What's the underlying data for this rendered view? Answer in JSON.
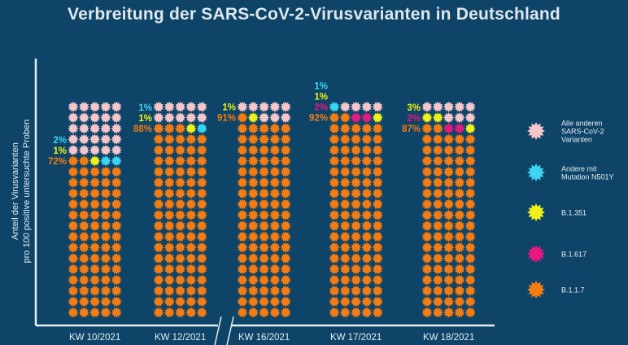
{
  "title": "Verbreitung der SARS-CoV-2-Virusvarianten in Deutschland",
  "chart_data": {
    "type": "waffle",
    "unit": "Anteil der Virusvarianten pro 100 positive untersuchte Proben",
    "ylabel_line1": "Anteil der Virusvarianten",
    "ylabel_line2": "pro 100 positive untersuchte Proben",
    "categories": [
      "KW 10/2021",
      "KW 12/2021",
      "KW 16/2021",
      "KW 17/2021",
      "KW 18/2021"
    ],
    "series": [
      {
        "name": "B.1.1.7",
        "color": "#f57c12",
        "values": [
          72,
          88,
          91,
          92,
          87
        ]
      },
      {
        "name": "B.1.617",
        "color": "#e5197f",
        "values": [
          0,
          0,
          0,
          2,
          2
        ]
      },
      {
        "name": "B.1.351",
        "color": "#eef11b",
        "values": [
          1,
          1,
          1,
          1,
          3
        ]
      },
      {
        "name": "Andere mit Mutation N501Y",
        "color": "#3dd3f2",
        "values": [
          2,
          1,
          0,
          1,
          0
        ]
      },
      {
        "name": "Alle anderen SARS-CoV-2 Varianten",
        "color": "#f6c6cb",
        "values": [
          25,
          10,
          8,
          4,
          8
        ]
      }
    ],
    "labels": [
      [
        {
          "text": "2%",
          "series": "Andere mit Mutation N501Y"
        },
        {
          "text": "1%",
          "series": "B.1.351"
        },
        {
          "text": "72%",
          "series": "B.1.1.7"
        }
      ],
      [
        {
          "text": "1%",
          "series": "Andere mit Mutation N501Y"
        },
        {
          "text": "1%",
          "series": "B.1.351"
        },
        {
          "text": "88%",
          "series": "B.1.1.7"
        }
      ],
      [
        {
          "text": "1%",
          "series": "B.1.351"
        },
        {
          "text": "91%",
          "series": "B.1.1.7"
        }
      ],
      [
        {
          "text": "1%",
          "series": "Andere mit Mutation N501Y"
        },
        {
          "text": "1%",
          "series": "B.1.351"
        },
        {
          "text": "2%",
          "series": "B.1.617"
        },
        {
          "text": "92%",
          "series": "B.1.1.7"
        }
      ],
      [
        {
          "text": "3%",
          "series": "B.1.351"
        },
        {
          "text": "2%",
          "series": "B.1.617"
        },
        {
          "text": "87%",
          "series": "B.1.1.7"
        }
      ]
    ],
    "legend": [
      {
        "label_lines": [
          "Alle anderen",
          "SARS-CoV-2",
          "Varianten"
        ],
        "color": "#f6c6cb"
      },
      {
        "label_lines": [
          "Andere mit",
          "Mutation N501Y"
        ],
        "color": "#3dd3f2"
      },
      {
        "label_lines": [
          "B.1.351"
        ],
        "color": "#eef11b"
      },
      {
        "label_lines": [
          "B.1.617"
        ],
        "color": "#e5197f"
      },
      {
        "label_lines": [
          "B.1.1.7"
        ],
        "color": "#f57c12"
      }
    ],
    "legend_position": "right"
  }
}
